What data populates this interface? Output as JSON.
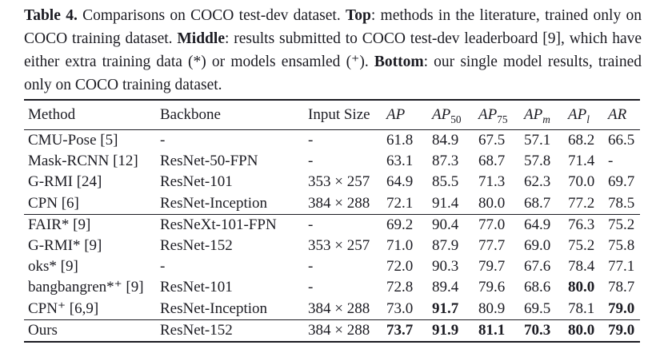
{
  "colors": {
    "text": "#1b1b22",
    "background": "#ffffff",
    "rule": "#1b1b22"
  },
  "caption": {
    "segments": [
      {
        "text": "Table 4.",
        "bold": true
      },
      {
        "text": " Comparisons on COCO test-dev dataset. ",
        "bold": false
      },
      {
        "text": "Top",
        "bold": true
      },
      {
        "text": ": methods in the literature, trained only on COCO training dataset. ",
        "bold": false
      },
      {
        "text": "Middle",
        "bold": true
      },
      {
        "text": ": results submitted to COCO test-dev leaderboard [9], which have either extra training data (*) or models ensamled (⁺). ",
        "bold": false
      },
      {
        "text": "Bottom",
        "bold": true
      },
      {
        "text": ": our single model results, trained only on COCO training dataset.",
        "bold": false
      }
    ]
  },
  "chart_data": {
    "type": "table",
    "title": "Table 4. Comparisons on COCO test-dev dataset",
    "columns": [
      "Method",
      "Backbone",
      "Input Size",
      "AP",
      "AP50",
      "AP75",
      "APm",
      "APl",
      "AR"
    ],
    "sections": [
      {
        "name": "top",
        "rows": [
          [
            "CMU-Pose [5]",
            "-",
            "-",
            61.8,
            84.9,
            67.5,
            57.1,
            68.2,
            66.5
          ],
          [
            "Mask-RCNN [12]",
            "ResNet-50-FPN",
            "-",
            63.1,
            87.3,
            68.7,
            57.8,
            71.4,
            null
          ],
          [
            "G-RMI [24]",
            "ResNet-101",
            "353 × 257",
            64.9,
            85.5,
            71.3,
            62.3,
            70.0,
            69.7
          ],
          [
            "CPN [6]",
            "ResNet-Inception",
            "384 × 288",
            72.1,
            91.4,
            80.0,
            68.7,
            77.2,
            78.5
          ]
        ]
      },
      {
        "name": "middle",
        "rows": [
          [
            "FAIR* [9]",
            "ResNeXt-101-FPN",
            "-",
            69.2,
            90.4,
            77.0,
            64.9,
            76.3,
            75.2
          ],
          [
            "G-RMI* [9]",
            "ResNet-152",
            "353 × 257",
            71.0,
            87.9,
            77.7,
            69.0,
            75.2,
            75.8
          ],
          [
            "oks* [9]",
            "-",
            "-",
            72.0,
            90.3,
            79.7,
            67.6,
            78.4,
            77.1
          ],
          [
            "bangbangren*⁺ [9]",
            "ResNet-101",
            "-",
            72.8,
            89.4,
            79.6,
            68.6,
            80.0,
            78.7
          ],
          [
            "CPN⁺ [6,9]",
            "ResNet-Inception",
            "384 × 288",
            73.0,
            91.7,
            80.9,
            69.5,
            78.1,
            79.0
          ]
        ]
      },
      {
        "name": "bottom",
        "rows": [
          [
            "Ours",
            "ResNet-152",
            "384 × 288",
            73.7,
            91.9,
            81.1,
            70.3,
            80.0,
            79.0
          ]
        ]
      }
    ]
  },
  "table": {
    "columns": [
      {
        "key": "method",
        "label": "Method",
        "italic": false,
        "sub": "",
        "sub_italic": false
      },
      {
        "key": "backbone",
        "label": "Backbone",
        "italic": false,
        "sub": "",
        "sub_italic": false
      },
      {
        "key": "input",
        "label": "Input Size",
        "italic": false,
        "sub": "",
        "sub_italic": false
      },
      {
        "key": "ap",
        "label": "AP",
        "italic": true,
        "sub": "",
        "sub_italic": false
      },
      {
        "key": "ap50",
        "label": "AP",
        "italic": true,
        "sub": "50",
        "sub_italic": false
      },
      {
        "key": "ap75",
        "label": "AP",
        "italic": true,
        "sub": "75",
        "sub_italic": false
      },
      {
        "key": "apm",
        "label": "AP",
        "italic": true,
        "sub": "m",
        "sub_italic": true
      },
      {
        "key": "apl",
        "label": "AP",
        "italic": true,
        "sub": "l",
        "sub_italic": true
      },
      {
        "key": "ar",
        "label": "AR",
        "italic": true,
        "sub": "",
        "sub_italic": false
      }
    ],
    "sections": [
      {
        "name": "top",
        "rows": [
          {
            "method": "CMU-Pose [5]",
            "backbone": "-",
            "input_size": "-",
            "values": [
              "61.8",
              "84.9",
              "67.5",
              "57.1",
              "68.2",
              "66.5"
            ],
            "bold": [
              0,
              0,
              0,
              0,
              0,
              0
            ]
          },
          {
            "method": "Mask-RCNN [12]",
            "backbone": "ResNet-50-FPN",
            "input_size": "-",
            "values": [
              "63.1",
              "87.3",
              "68.7",
              "57.8",
              "71.4",
              "-"
            ],
            "bold": [
              0,
              0,
              0,
              0,
              0,
              0
            ]
          },
          {
            "method": "G-RMI [24]",
            "backbone": "ResNet-101",
            "input_size": "353 × 257",
            "values": [
              "64.9",
              "85.5",
              "71.3",
              "62.3",
              "70.0",
              "69.7"
            ],
            "bold": [
              0,
              0,
              0,
              0,
              0,
              0
            ]
          },
          {
            "method": "CPN [6]",
            "backbone": "ResNet-Inception",
            "input_size": "384 × 288",
            "values": [
              "72.1",
              "91.4",
              "80.0",
              "68.7",
              "77.2",
              "78.5"
            ],
            "bold": [
              0,
              0,
              0,
              0,
              0,
              0
            ]
          }
        ]
      },
      {
        "name": "middle",
        "rows": [
          {
            "method": "FAIR* [9]",
            "backbone": "ResNeXt-101-FPN",
            "input_size": "-",
            "values": [
              "69.2",
              "90.4",
              "77.0",
              "64.9",
              "76.3",
              "75.2"
            ],
            "bold": [
              0,
              0,
              0,
              0,
              0,
              0
            ]
          },
          {
            "method": "G-RMI* [9]",
            "backbone": "ResNet-152",
            "input_size": "353 × 257",
            "values": [
              "71.0",
              "87.9",
              "77.7",
              "69.0",
              "75.2",
              "75.8"
            ],
            "bold": [
              0,
              0,
              0,
              0,
              0,
              0
            ]
          },
          {
            "method": "oks* [9]",
            "backbone": "-",
            "input_size": "-",
            "values": [
              "72.0",
              "90.3",
              "79.7",
              "67.6",
              "78.4",
              "77.1"
            ],
            "bold": [
              0,
              0,
              0,
              0,
              0,
              0
            ]
          },
          {
            "method": "bangbangren*⁺ [9]",
            "backbone": "ResNet-101",
            "input_size": "-",
            "values": [
              "72.8",
              "89.4",
              "79.6",
              "68.6",
              "80.0",
              "78.7"
            ],
            "bold": [
              0,
              0,
              0,
              0,
              1,
              0
            ]
          },
          {
            "method": "CPN⁺ [6,9]",
            "backbone": "ResNet-Inception",
            "input_size": "384 × 288",
            "values": [
              "73.0",
              "91.7",
              "80.9",
              "69.5",
              "78.1",
              "79.0"
            ],
            "bold": [
              0,
              1,
              0,
              0,
              0,
              1
            ]
          }
        ]
      },
      {
        "name": "bottom",
        "rows": [
          {
            "method": "Ours",
            "backbone": "ResNet-152",
            "input_size": "384 × 288",
            "values": [
              "73.7",
              "91.9",
              "81.1",
              "70.3",
              "80.0",
              "79.0"
            ],
            "bold": [
              1,
              1,
              1,
              1,
              1,
              1
            ]
          }
        ]
      }
    ]
  }
}
